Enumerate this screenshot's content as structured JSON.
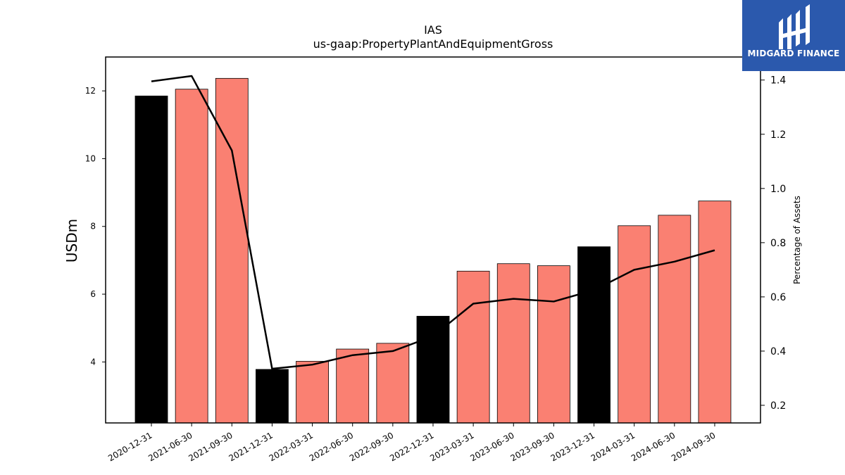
{
  "chart_data": {
    "type": "bar",
    "title": "IAS",
    "subtitle": "us-gaap:PropertyPlantAndEquipmentGross",
    "ylabel": "USDm",
    "y2label": "Percentage of Assets",
    "categories": [
      "2020-12-31",
      "2021-06-30",
      "2021-09-30",
      "2021-12-31",
      "2022-03-31",
      "2022-06-30",
      "2022-09-30",
      "2022-12-31",
      "2023-03-31",
      "2023-06-30",
      "2023-09-30",
      "2023-12-31",
      "2024-03-31",
      "2024-06-30",
      "2024-09-30"
    ],
    "values": [
      11.85,
      12.05,
      12.37,
      3.78,
      4.02,
      4.38,
      4.55,
      5.35,
      6.68,
      6.9,
      6.84,
      7.4,
      8.02,
      8.33,
      8.75
    ],
    "bar_colors": [
      "#000000",
      "#fa8072",
      "#fa8072",
      "#000000",
      "#fa8072",
      "#fa8072",
      "#fa8072",
      "#000000",
      "#fa8072",
      "#fa8072",
      "#fa8072",
      "#000000",
      "#fa8072",
      "#fa8072",
      "#fa8072"
    ],
    "line_series": {
      "values": [
        1.395,
        1.415,
        1.14,
        0.335,
        0.35,
        0.385,
        0.4,
        0.455,
        0.575,
        0.593,
        0.583,
        0.625,
        0.7,
        0.73,
        0.772
      ],
      "color": "#000000"
    },
    "ylim": [
      2.2,
      13.0
    ],
    "yticks": [
      4,
      6,
      8,
      10,
      12
    ],
    "y2lim": [
      0.135,
      1.485
    ],
    "y2ticks": [
      0.2,
      0.4,
      0.6,
      0.8,
      1.0,
      1.2,
      1.4
    ],
    "grid": false
  },
  "logo": {
    "text": "MIDGARD FINANCE",
    "background": "#2b59ad",
    "icon": "midgard-logo-icon"
  }
}
